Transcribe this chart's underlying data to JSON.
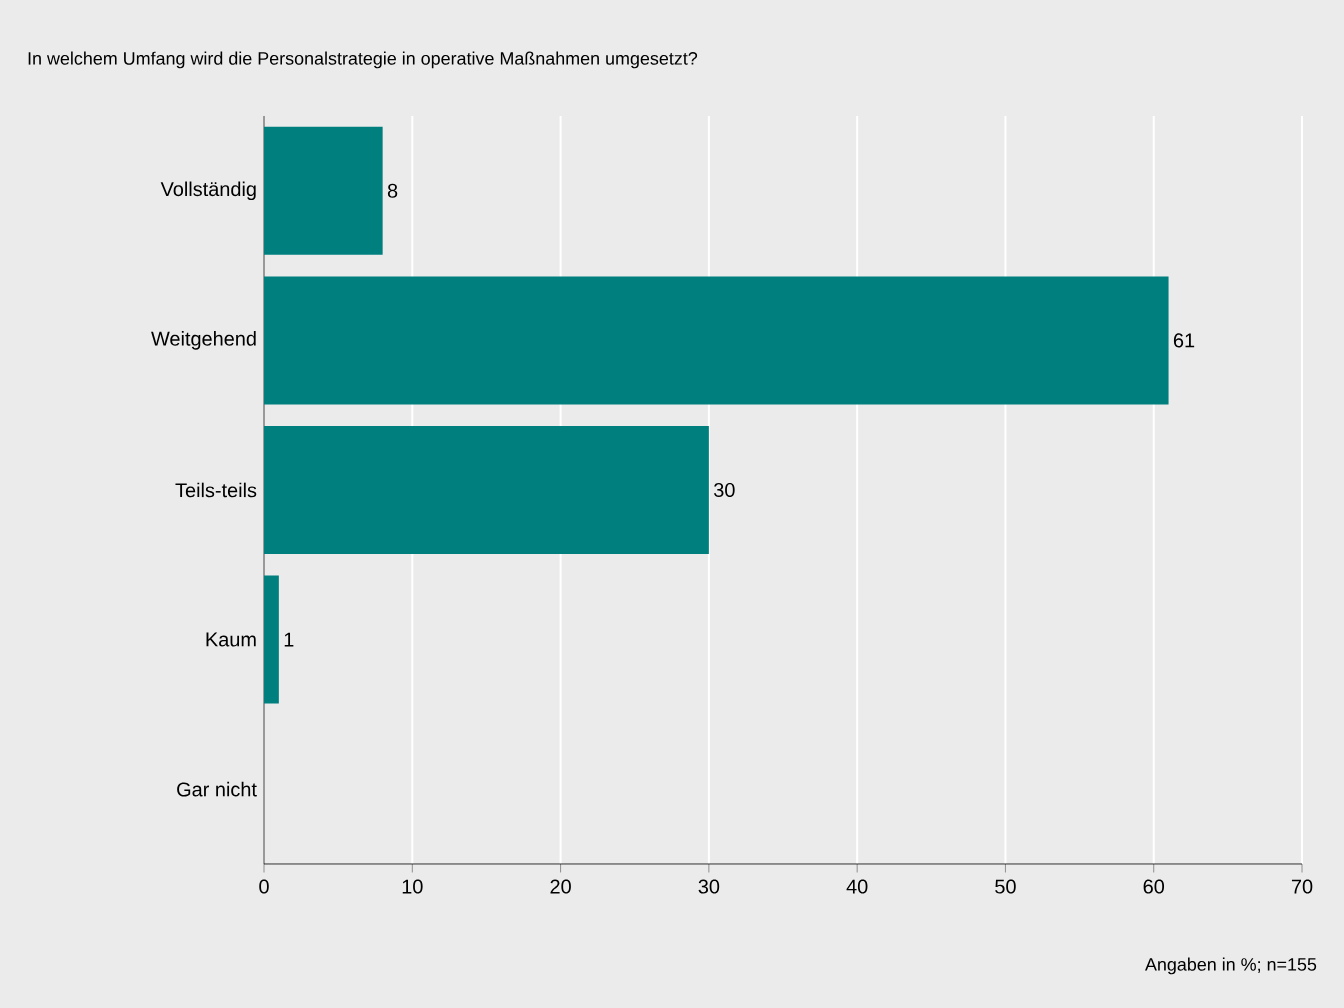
{
  "chart_data": {
    "type": "bar",
    "orientation": "horizontal",
    "title": "In welchem Umfang wird die Personalstrategie in operative Maßnahmen umgesetzt?",
    "categories": [
      "Vollständig",
      "Weitgehend",
      "Teils-teils",
      "Kaum",
      "Gar nicht"
    ],
    "values": [
      8,
      61,
      30,
      1,
      0
    ],
    "value_labels": [
      "8",
      "61",
      "30",
      "1",
      null
    ],
    "color": "#007f7f",
    "xlim": [
      0,
      70
    ],
    "xticks": [
      0,
      10,
      20,
      30,
      40,
      50,
      60,
      70
    ],
    "grid": "x",
    "annotations": [
      "Angaben in %; n=155"
    ]
  }
}
